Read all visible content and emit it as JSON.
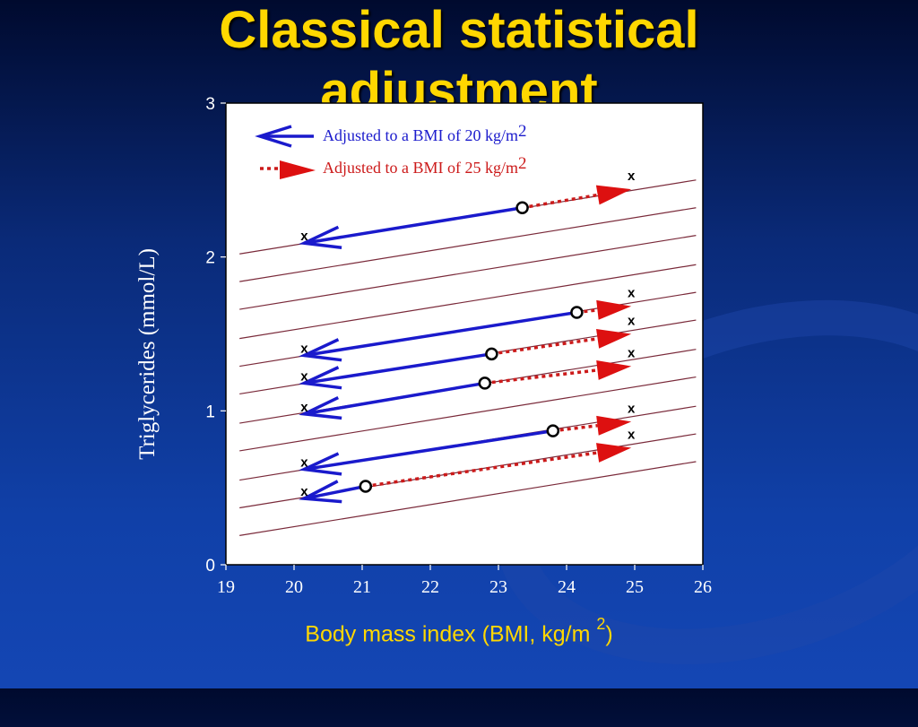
{
  "slide": {
    "title_line1": "Classical statistical",
    "title_line2": "adjustment",
    "y_axis_label": "Triglycerides (mmol/L)",
    "x_axis_label": "Body mass index (BMI, kg/m",
    "x_axis_label_sup": "2",
    "x_axis_label_end": ")"
  },
  "chart_data": {
    "type": "scatter",
    "title": "Classical statistical adjustment",
    "xlabel": "Body mass index (BMI, kg/m2)",
    "ylabel": "Triglycerides (mmol/L)",
    "xlim": [
      19,
      26
    ],
    "ylim": [
      0,
      3
    ],
    "x_ticks": [
      "19",
      "20",
      "21",
      "22",
      "23",
      "24",
      "25",
      "26"
    ],
    "y_ticks": [
      "0",
      "1",
      "2",
      "3"
    ],
    "legend": [
      {
        "label": "Adjusted to a BMI of 20 kg/m",
        "sup": "2",
        "color": "#1a1acc",
        "style": "solid"
      },
      {
        "label": "Adjusted to a BMI of 25 kg/m",
        "sup": "2",
        "color": "#cc1a1a",
        "style": "dotted"
      }
    ],
    "legend_position": "top-left",
    "regression_lines": [
      {
        "y_at_19_2": 0.19,
        "y_at_25_9": 0.67
      },
      {
        "y_at_19_2": 0.37,
        "y_at_25_9": 0.85
      },
      {
        "y_at_19_2": 0.55,
        "y_at_25_9": 1.03
      },
      {
        "y_at_19_2": 0.74,
        "y_at_25_9": 1.22
      },
      {
        "y_at_19_2": 0.92,
        "y_at_25_9": 1.4
      },
      {
        "y_at_19_2": 1.11,
        "y_at_25_9": 1.59
      },
      {
        "y_at_19_2": 1.29,
        "y_at_25_9": 1.77
      },
      {
        "y_at_19_2": 1.47,
        "y_at_25_9": 1.95
      },
      {
        "y_at_19_2": 1.66,
        "y_at_25_9": 2.14
      },
      {
        "y_at_19_2": 1.84,
        "y_at_25_9": 2.32
      },
      {
        "y_at_19_2": 2.02,
        "y_at_25_9": 2.5
      }
    ],
    "observations": [
      {
        "bmi": 23.35,
        "tg": 2.32,
        "adj20": 2.09,
        "adj25": 2.44
      },
      {
        "bmi": 24.15,
        "tg": 1.64,
        "adj20": 1.36,
        "adj25": 1.68
      },
      {
        "bmi": 22.9,
        "tg": 1.37,
        "adj20": 1.18,
        "adj25": 1.5
      },
      {
        "bmi": 22.8,
        "tg": 1.18,
        "adj20": 0.98,
        "adj25": 1.29
      },
      {
        "bmi": 23.8,
        "tg": 0.87,
        "adj20": 0.62,
        "adj25": 0.93
      },
      {
        "bmi": 21.05,
        "tg": 0.51,
        "adj20": 0.43,
        "adj25": 0.76
      }
    ],
    "x_marker_label": "x"
  }
}
